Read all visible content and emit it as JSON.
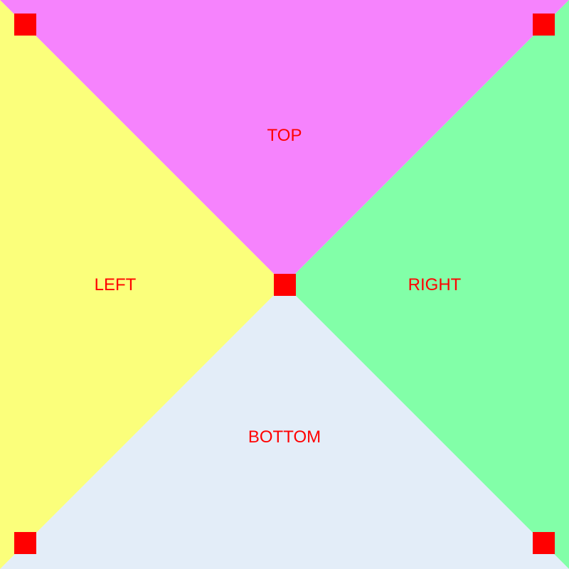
{
  "regions": {
    "top": {
      "label": "TOP",
      "color": "#f683fd"
    },
    "left": {
      "label": "LEFT",
      "color": "#fbff7b"
    },
    "right": {
      "label": "RIGHT",
      "color": "#82ffa8"
    },
    "bottom": {
      "label": "BOTTOM",
      "color": "#e3edf8"
    }
  },
  "label_color": "#ff0000",
  "marker_color": "#ff0000",
  "markers": [
    "top-left",
    "top-right",
    "center",
    "bottom-left",
    "bottom-right"
  ]
}
